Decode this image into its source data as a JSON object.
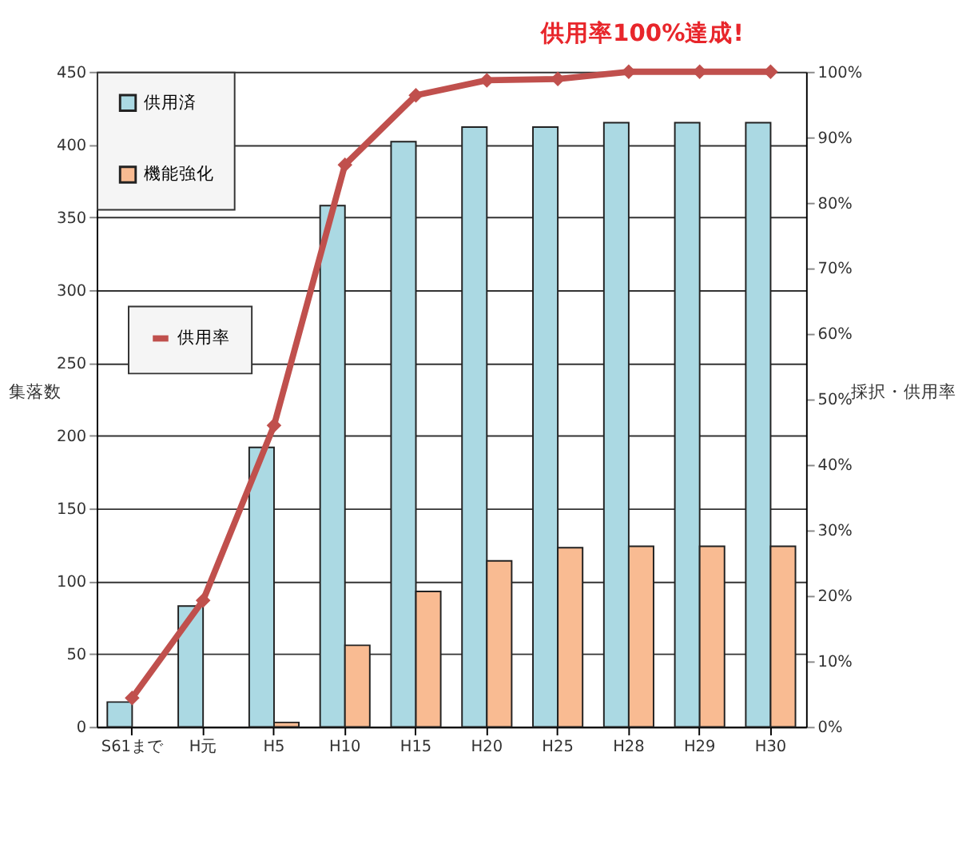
{
  "chart_data": {
    "type": "bar",
    "categories": [
      "S61まで",
      "H元",
      "H5",
      "H10",
      "H15",
      "H20",
      "H25",
      "H28",
      "H29",
      "H30"
    ],
    "series": [
      {
        "name": "供用済",
        "color": "#abd9e3",
        "values": [
          17,
          83,
          192,
          358,
          402,
          412,
          412,
          415,
          415,
          415
        ]
      },
      {
        "name": "機能強化",
        "color": "#f9bb92",
        "values": [
          null,
          null,
          3,
          56,
          93,
          114,
          123,
          124,
          124,
          124
        ]
      },
      {
        "name": "供用率",
        "type": "line",
        "axis": "y2",
        "color": "#c0504d",
        "marker": "diamond",
        "values": [
          4.4,
          19.3,
          46,
          85.8,
          96.4,
          98.7,
          98.9,
          100,
          100,
          100
        ]
      }
    ],
    "ylabel": "集落数",
    "y2label": "採択・供用率",
    "ylim": [
      0,
      450
    ],
    "yticks": [
      0,
      50,
      100,
      150,
      200,
      250,
      300,
      350,
      400,
      450
    ],
    "y2lim": [
      0,
      100
    ],
    "y2ticks": [
      {
        "value": 0,
        "label": "0%"
      },
      {
        "value": 10,
        "label": "10%"
      },
      {
        "value": 20,
        "label": "20%"
      },
      {
        "value": 30,
        "label": "30%"
      },
      {
        "value": 40,
        "label": "40%"
      },
      {
        "value": 50,
        "label": "50%"
      },
      {
        "value": 60,
        "label": "60%"
      },
      {
        "value": 70,
        "label": "70%"
      },
      {
        "value": 80,
        "label": "80%"
      },
      {
        "value": 90,
        "label": "90%"
      },
      {
        "value": 100,
        "label": "100%"
      }
    ],
    "annotations": [
      "供用率100%達成!"
    ],
    "grid": "y",
    "legend": "top left"
  }
}
